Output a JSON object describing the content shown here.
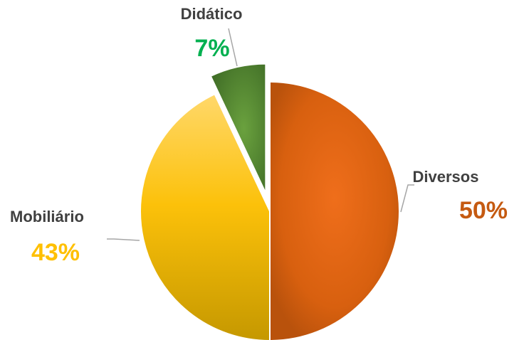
{
  "chart_data": {
    "type": "pie",
    "title": "",
    "legend": "none",
    "exploded_slice": "Didático",
    "slices": [
      {
        "label": "Diversos",
        "value": 50,
        "display": "50%",
        "color": "#D35F0F",
        "label_color": "#C55A11"
      },
      {
        "label": "Mobiliário",
        "value": 43,
        "display": "43%",
        "color": "#F2B800",
        "label_color": "#FFC000"
      },
      {
        "label": "Didático",
        "value": 7,
        "display": "7%",
        "color": "#548235",
        "label_color": "#00B050"
      }
    ]
  }
}
